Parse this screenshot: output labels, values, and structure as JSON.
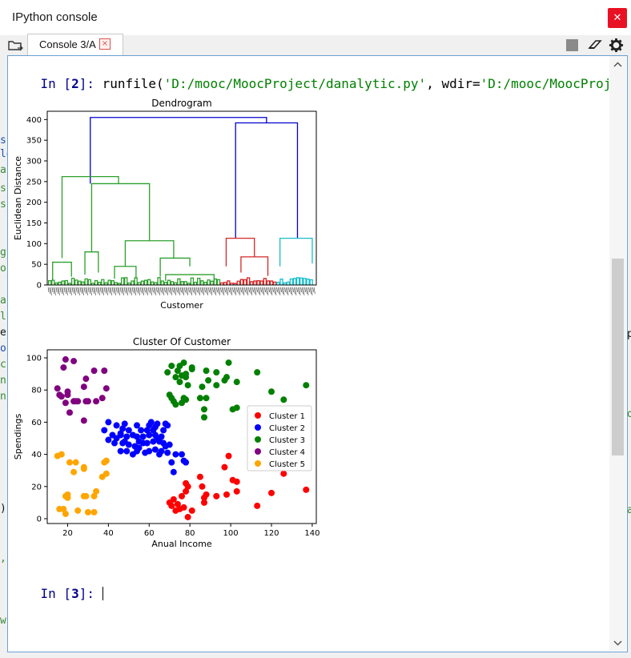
{
  "window": {
    "title": "IPython console",
    "close_glyph": "✕"
  },
  "tabs": [
    {
      "label": "Console 3/A",
      "close_glyph": "×"
    }
  ],
  "toolbar": {
    "icons": [
      "browse-tabs-icon",
      "stop-icon",
      "clear-icon",
      "gear-icon"
    ]
  },
  "console": {
    "in2_prefix": "In [",
    "in2_num": "2",
    "in2_suffix": "]: ",
    "in2_func": "runfile(",
    "in2_path": "'D:/mooc/MoocProject/danalytic.py'",
    "in2_sep": ", wdir=",
    "in2_wdir": "'D:/mooc/MoocProject'",
    "in2_close": ")",
    "in3_prefix": "In [",
    "in3_num": "3",
    "in3_suffix": "]: "
  },
  "chart_data": [
    {
      "type": "dendrogram",
      "title": "Dendrogram",
      "xlabel": "Customer",
      "ylabel": "Euclidean Distance",
      "ylim": [
        0,
        420
      ],
      "yticks": [
        0,
        50,
        100,
        150,
        200,
        250,
        300,
        350,
        400
      ],
      "root_height": 405,
      "merge_heights": [
        405,
        392,
        262,
        245,
        113,
        113,
        107,
        80,
        65,
        55
      ],
      "cluster_colors": {
        "green": "#2ca02c",
        "red": "#d62728",
        "cyan": "#17becf",
        "link": "#0000cc"
      }
    },
    {
      "type": "scatter",
      "title": "Cluster Of Customer",
      "xlabel": "Anual Income",
      "ylabel": "Spendings",
      "xlim": [
        10,
        142
      ],
      "ylim": [
        -3,
        105
      ],
      "xticks": [
        20,
        40,
        60,
        80,
        100,
        120,
        140
      ],
      "yticks": [
        0,
        20,
        40,
        60,
        80,
        100
      ],
      "legend": "right",
      "series": [
        {
          "name": "Cluster 1",
          "color": "#ff0000",
          "points": [
            [
              70,
              10
            ],
            [
              71,
              8
            ],
            [
              72,
              12
            ],
            [
              73,
              5
            ],
            [
              74,
              9
            ],
            [
              75,
              6
            ],
            [
              76,
              14
            ],
            [
              77,
              7
            ],
            [
              78,
              17
            ],
            [
              78,
              22
            ],
            [
              79,
              1
            ],
            [
              79,
              20
            ],
            [
              81,
              5
            ],
            [
              85,
              26
            ],
            [
              86,
              20
            ],
            [
              87,
              10
            ],
            [
              87,
              13
            ],
            [
              88,
              15
            ],
            [
              93,
              14
            ],
            [
              97,
              32
            ],
            [
              98,
              15
            ],
            [
              99,
              39
            ],
            [
              101,
              24
            ],
            [
              103,
              23
            ],
            [
              103,
              17
            ],
            [
              113,
              8
            ],
            [
              120,
              16
            ],
            [
              126,
              28
            ],
            [
              137,
              18
            ]
          ]
        },
        {
          "name": "Cluster 2",
          "color": "#0000ff",
          "points": [
            [
              38,
              55
            ],
            [
              40,
              60
            ],
            [
              42,
              52
            ],
            [
              43,
              47
            ],
            [
              44,
              58
            ],
            [
              44,
              50
            ],
            [
              46,
              52
            ],
            [
              46,
              42
            ],
            [
              47,
              47
            ],
            [
              47,
              56
            ],
            [
              48,
              48
            ],
            [
              48,
              59
            ],
            [
              49,
              51
            ],
            [
              49,
              42
            ],
            [
              50,
              46
            ],
            [
              50,
              55
            ],
            [
              52,
              52
            ],
            [
              53,
              45
            ],
            [
              54,
              42
            ],
            [
              54,
              51
            ],
            [
              54,
              58
            ],
            [
              55,
              44
            ],
            [
              56,
              55
            ],
            [
              57,
              47
            ],
            [
              57,
              51
            ],
            [
              58,
              41
            ],
            [
              59,
              55
            ],
            [
              59,
              47
            ],
            [
              60,
              52
            ],
            [
              60,
              42
            ],
            [
              61,
              60
            ],
            [
              62,
              55
            ],
            [
              62,
              48
            ],
            [
              63,
              52
            ],
            [
              63,
              43
            ],
            [
              63,
              57
            ],
            [
              64,
              59
            ],
            [
              65,
              48
            ],
            [
              65,
              40
            ],
            [
              66,
              51
            ],
            [
              66,
              42
            ],
            [
              67,
              55
            ],
            [
              67,
              47
            ],
            [
              68,
              59
            ],
            [
              68,
              45
            ],
            [
              69,
              58
            ],
            [
              69,
              41
            ],
            [
              70,
              46
            ],
            [
              71,
              35
            ],
            [
              72,
              29
            ],
            [
              73,
              40
            ],
            [
              76,
              40
            ],
            [
              77,
              36
            ],
            [
              78,
              35
            ],
            [
              60,
              58
            ],
            [
              55,
              48
            ],
            [
              46,
              53
            ],
            [
              52,
              40
            ],
            [
              40,
              49
            ],
            [
              64,
              50
            ]
          ]
        },
        {
          "name": "Cluster 3",
          "color": "#008000",
          "points": [
            [
              69,
              91
            ],
            [
              70,
              77
            ],
            [
              71,
              95
            ],
            [
              71,
              75
            ],
            [
              72,
              73
            ],
            [
              73,
              88
            ],
            [
              73,
              71
            ],
            [
              74,
              92
            ],
            [
              75,
              85
            ],
            [
              75,
              95
            ],
            [
              76,
              89
            ],
            [
              76,
              72
            ],
            [
              77,
              75
            ],
            [
              77,
              97
            ],
            [
              78,
              88
            ],
            [
              78,
              74
            ],
            [
              78,
              90
            ],
            [
              79,
              83
            ],
            [
              81,
              93
            ],
            [
              81,
              94
            ],
            [
              85,
              75
            ],
            [
              86,
              82
            ],
            [
              87,
              68
            ],
            [
              87,
              63
            ],
            [
              88,
              75
            ],
            [
              88,
              92
            ],
            [
              89,
              86
            ],
            [
              93,
              91
            ],
            [
              93,
              83
            ],
            [
              97,
              86
            ],
            [
              98,
              88
            ],
            [
              99,
              97
            ],
            [
              101,
              68
            ],
            [
              103,
              69
            ],
            [
              103,
              85
            ],
            [
              113,
              91
            ],
            [
              120,
              79
            ],
            [
              126,
              74
            ],
            [
              137,
              83
            ]
          ]
        },
        {
          "name": "Cluster 4",
          "color": "#800080",
          "points": [
            [
              15,
              81
            ],
            [
              16,
              77
            ],
            [
              17,
              76
            ],
            [
              18,
              94
            ],
            [
              19,
              72
            ],
            [
              19,
              99
            ],
            [
              20,
              79
            ],
            [
              20,
              77
            ],
            [
              21,
              66
            ],
            [
              23,
              98
            ],
            [
              23,
              73
            ],
            [
              24,
              73
            ],
            [
              25,
              73
            ],
            [
              28,
              82
            ],
            [
              28,
              61
            ],
            [
              29,
              87
            ],
            [
              29,
              73
            ],
            [
              30,
              73
            ],
            [
              33,
              92
            ],
            [
              34,
              73
            ],
            [
              37,
              75
            ],
            [
              38,
              92
            ],
            [
              39,
              81
            ]
          ]
        },
        {
          "name": "Cluster 5",
          "color": "#ffa500",
          "points": [
            [
              15,
              39
            ],
            [
              16,
              6
            ],
            [
              17,
              40
            ],
            [
              18,
              6
            ],
            [
              19,
              3
            ],
            [
              19,
              14
            ],
            [
              20,
              15
            ],
            [
              20,
              13
            ],
            [
              21,
              35
            ],
            [
              23,
              29
            ],
            [
              24,
              35
            ],
            [
              25,
              5
            ],
            [
              28,
              14
            ],
            [
              28,
              32
            ],
            [
              28,
              31
            ],
            [
              29,
              14
            ],
            [
              30,
              4
            ],
            [
              33,
              4
            ],
            [
              33,
              14
            ],
            [
              34,
              17
            ],
            [
              37,
              26
            ],
            [
              38,
              35
            ],
            [
              39,
              36
            ],
            [
              39,
              28
            ]
          ]
        }
      ]
    }
  ]
}
